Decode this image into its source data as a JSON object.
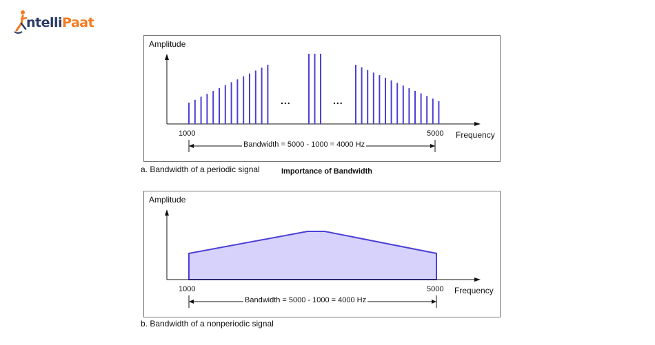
{
  "brand": {
    "part1": "ntelli",
    "part2": "Paat",
    "accent": "#f47a20",
    "primary": "#2b3a67"
  },
  "title": "Importance of Bandwidth",
  "colors": {
    "line": "#4b3fd6",
    "fill": "#d7d2fb",
    "axis": "#111111"
  },
  "diagrams": [
    {
      "id": "a",
      "ylabel": "Amplitude",
      "xlabel": "Frequency",
      "x_start_label": "1000",
      "x_end_label": "5000",
      "bandwidth_label": "Bandwidth = 5000 - 1000 = 4000 Hz",
      "ellipsis": "...",
      "caption": "a. Bandwidth of a periodic signal",
      "type": "spectral-lines"
    },
    {
      "id": "b",
      "ylabel": "Amplitude",
      "xlabel": "Frequency",
      "x_start_label": "1000",
      "x_end_label": "5000",
      "bandwidth_label": "Bandwidth = 5000 - 1000 = 4000 Hz",
      "caption": "b. Bandwidth of a nonperiodic signal",
      "type": "continuous-area"
    }
  ]
}
